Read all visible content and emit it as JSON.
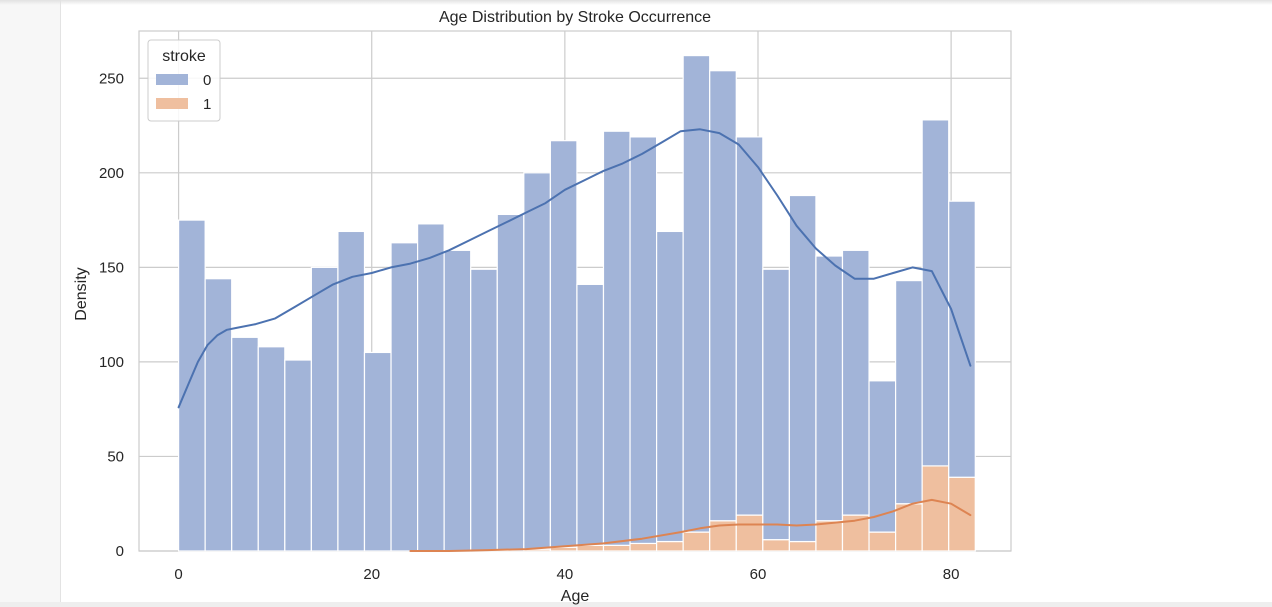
{
  "chart_data": {
    "type": "bar",
    "title": "Age Distribution by Stroke Occurrence",
    "xlabel": "Age",
    "ylabel": "Density",
    "xlim": [
      -4.1,
      86.2
    ],
    "ylim": [
      0,
      275
    ],
    "xticks": [
      0,
      20,
      40,
      60,
      80
    ],
    "yticks": [
      0,
      50,
      100,
      150,
      200,
      250
    ],
    "grid": true,
    "stacked": true,
    "bin_edges": [
      0.0,
      2.75,
      5.5,
      8.25,
      11.0,
      13.75,
      16.5,
      19.25,
      22.0,
      24.75,
      27.5,
      30.25,
      33.0,
      35.75,
      38.5,
      41.25,
      44.0,
      46.75,
      49.5,
      52.25,
      55.0,
      57.75,
      60.5,
      63.25,
      66.0,
      68.75,
      71.5,
      74.25,
      77.0,
      79.75,
      82.5
    ],
    "legend": {
      "title": "stroke",
      "position": "top-left",
      "entries": [
        "0",
        "1"
      ]
    },
    "colors": {
      "stroke_0_bar": "#a2b4d8",
      "stroke_0_line": "#4c72b0",
      "stroke_1_bar": "#efbf9f",
      "stroke_1_line": "#dd8452",
      "grid": "#cccccc",
      "axes": "#cccccc",
      "text": "#262626"
    },
    "series": [
      {
        "name": "0",
        "values": [
          175,
          144,
          113,
          108,
          101,
          150,
          169,
          105,
          163,
          173,
          159,
          149,
          178,
          199,
          215,
          138,
          219,
          215,
          164,
          252,
          238,
          200,
          143,
          183,
          140,
          140,
          80,
          118,
          183,
          146
        ]
      },
      {
        "name": "1",
        "values": [
          0,
          0,
          0,
          0,
          0,
          0,
          0,
          0,
          0,
          0,
          0,
          0,
          0,
          1,
          2,
          3,
          3,
          4,
          5,
          10,
          16,
          19,
          6,
          5,
          16,
          19,
          10,
          25,
          45,
          39
        ]
      }
    ],
    "kde": [
      {
        "name": "0",
        "x": [
          0,
          1,
          2,
          3,
          4,
          5,
          6,
          8,
          10,
          12,
          14,
          16,
          18,
          20,
          22,
          24,
          26,
          28,
          30,
          32,
          34,
          36,
          38,
          40,
          42,
          44,
          46,
          48,
          50,
          52,
          54,
          56,
          58,
          60,
          62,
          64,
          66,
          68,
          70,
          72,
          74,
          76,
          78,
          80,
          82
        ],
        "y": [
          76,
          88,
          100,
          109,
          114,
          117,
          118,
          120,
          123,
          129,
          135,
          141,
          145,
          147,
          150,
          152,
          155,
          159,
          164,
          169,
          174,
          179,
          184,
          191,
          196,
          201,
          205,
          210,
          216,
          222,
          223,
          221,
          215,
          203,
          188,
          172,
          160,
          151,
          144,
          144,
          147,
          150,
          148,
          128,
          98
        ]
      },
      {
        "name": "1",
        "x": [
          24,
          28,
          32,
          36,
          40,
          44,
          48,
          52,
          54,
          56,
          58,
          60,
          62,
          64,
          66,
          68,
          70,
          72,
          74,
          76,
          78,
          80,
          82
        ],
        "y": [
          0,
          0,
          0.5,
          1,
          2.5,
          4,
          6.5,
          10,
          12,
          13.5,
          14,
          14,
          14,
          13.5,
          14,
          15,
          16,
          18,
          21,
          25,
          27,
          25,
          19
        ]
      }
    ]
  }
}
